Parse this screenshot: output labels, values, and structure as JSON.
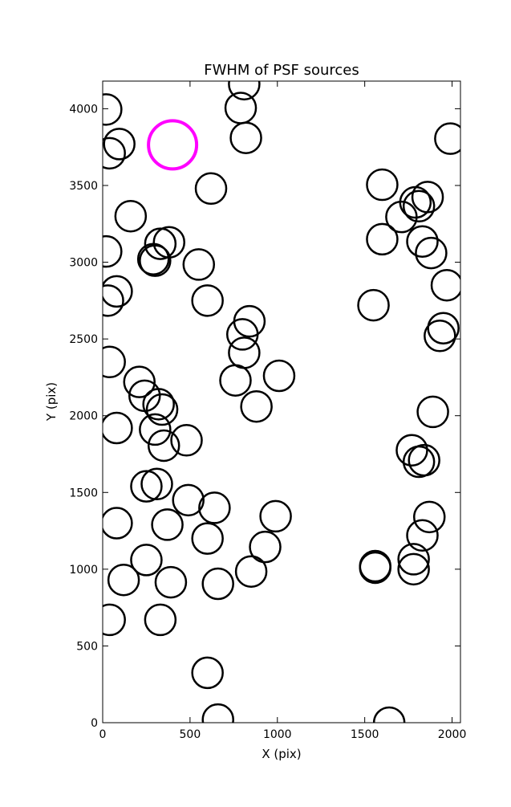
{
  "chart_data": {
    "type": "scatter",
    "title": "FWHM of PSF sources",
    "xlabel": "X (pix)",
    "ylabel": "Y (pix)",
    "xlim": [
      0,
      2048
    ],
    "ylim": [
      0,
      4180
    ],
    "xticks": [
      "0",
      "500",
      "1000",
      "1500",
      "2000"
    ],
    "yticks": [
      "0",
      "500",
      "1000",
      "1500",
      "2000",
      "2500",
      "3000",
      "3500",
      "4000"
    ],
    "grid": false,
    "marker": "open circle",
    "marker_color": "#000000",
    "reference_color": "#ff00ff",
    "reference": [
      {
        "x": 400,
        "y": 3765
      }
    ],
    "x": [
      810,
      20,
      790,
      820,
      95,
      40,
      1990,
      620,
      1600,
      1860,
      1790,
      1810,
      1710,
      160,
      1600,
      1830,
      1880,
      20,
      380,
      330,
      290,
      300,
      550,
      1970,
      80,
      30,
      600,
      1550,
      840,
      800,
      1930,
      1950,
      810,
      40,
      1010,
      760,
      210,
      240,
      320,
      340,
      880,
      1890,
      80,
      300,
      480,
      350,
      1770,
      1810,
      1840,
      250,
      310,
      490,
      640,
      990,
      80,
      1870,
      370,
      600,
      1830,
      930,
      250,
      1560,
      1780,
      1560,
      1780,
      850,
      120,
      390,
      660,
      40,
      330,
      600,
      660,
      1640
    ],
    "y": [
      4160,
      3995,
      4005,
      3810,
      3770,
      3710,
      3805,
      3480,
      3505,
      3425,
      3390,
      3365,
      3295,
      3300,
      3150,
      3135,
      3060,
      3070,
      3130,
      3120,
      3020,
      3010,
      2985,
      2850,
      2810,
      2750,
      2750,
      2720,
      2615,
      2530,
      2520,
      2570,
      2410,
      2350,
      2260,
      2230,
      2220,
      2130,
      2075,
      2040,
      2060,
      2025,
      1920,
      1910,
      1840,
      1805,
      1775,
      1700,
      1710,
      1540,
      1555,
      1450,
      1400,
      1345,
      1300,
      1340,
      1290,
      1200,
      1220,
      1145,
      1060,
      1020,
      1065,
      1010,
      1000,
      985,
      930,
      915,
      905,
      670,
      670,
      325,
      20,
      0
    ]
  }
}
